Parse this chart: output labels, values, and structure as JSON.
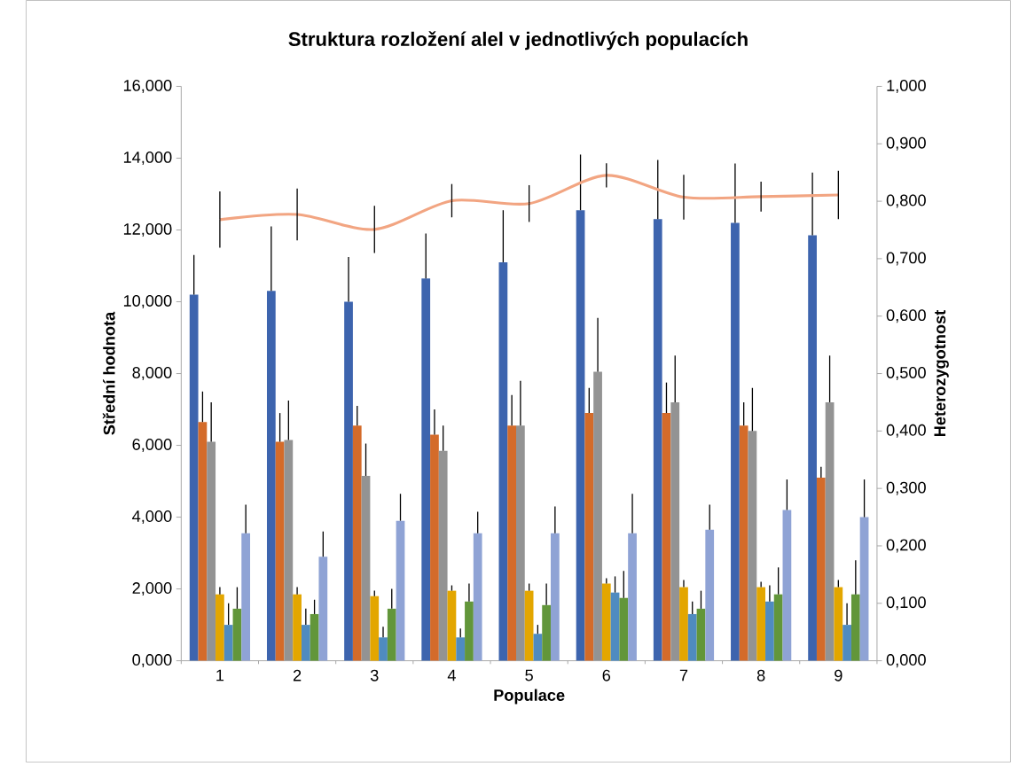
{
  "chart_data": {
    "type": "bar",
    "title": "Struktura rozložení alel v jednotlivých populacích",
    "xlabel": "Populace",
    "ylabel": "Střední hodnota",
    "y2label": "Heterozygotnost",
    "categories": [
      "1",
      "2",
      "3",
      "4",
      "5",
      "6",
      "7",
      "8",
      "9"
    ],
    "ylim": [
      0,
      16
    ],
    "yticks": [
      {
        "value": 0,
        "label": "0,000"
      },
      {
        "value": 2,
        "label": "2,000"
      },
      {
        "value": 4,
        "label": "4,000"
      },
      {
        "value": 6,
        "label": "6,000"
      },
      {
        "value": 8,
        "label": "8,000"
      },
      {
        "value": 10,
        "label": "10,000"
      },
      {
        "value": 12,
        "label": "12,000"
      },
      {
        "value": 14,
        "label": "14,000"
      },
      {
        "value": 16,
        "label": "16,000"
      }
    ],
    "y2lim": [
      0,
      1
    ],
    "y2ticks": [
      {
        "value": 0,
        "label": "0,000"
      },
      {
        "value": 0.1,
        "label": "0,100"
      },
      {
        "value": 0.2,
        "label": "0,200"
      },
      {
        "value": 0.3,
        "label": "0,300"
      },
      {
        "value": 0.4,
        "label": "0,400"
      },
      {
        "value": 0.5,
        "label": "0,500"
      },
      {
        "value": 0.6,
        "label": "0,600"
      },
      {
        "value": 0.7,
        "label": "0,700"
      },
      {
        "value": 0.8,
        "label": "0,800"
      },
      {
        "value": 0.9,
        "label": "0,900"
      },
      {
        "value": 1,
        "label": "1,000"
      }
    ],
    "series": [
      {
        "color": "#3d64ae",
        "values": [
          10.2,
          10.3,
          10.0,
          10.65,
          11.1,
          12.55,
          12.3,
          12.2,
          11.85
        ],
        "errors": [
          [
            10.2,
            11.3
          ],
          [
            10.3,
            12.1
          ],
          [
            10.0,
            11.25
          ],
          [
            10.65,
            11.9
          ],
          [
            11.1,
            12.55
          ],
          [
            12.55,
            14.1
          ],
          [
            12.3,
            13.95
          ],
          [
            12.2,
            13.85
          ],
          [
            11.85,
            13.6
          ]
        ]
      },
      {
        "color": "#d46b2a",
        "values": [
          6.65,
          6.1,
          6.55,
          6.3,
          6.55,
          6.9,
          6.9,
          6.55,
          5.1
        ],
        "errors": [
          [
            6.65,
            7.5
          ],
          [
            6.1,
            6.9
          ],
          [
            6.55,
            7.1
          ],
          [
            6.3,
            7.0
          ],
          [
            6.55,
            7.4
          ],
          [
            6.9,
            7.6
          ],
          [
            6.9,
            7.75
          ],
          [
            6.55,
            7.2
          ],
          [
            5.1,
            5.4
          ]
        ]
      },
      {
        "color": "#939393",
        "values": [
          6.1,
          6.15,
          5.15,
          5.85,
          6.55,
          8.05,
          7.2,
          6.4,
          7.2
        ],
        "errors": [
          [
            6.1,
            7.2
          ],
          [
            6.15,
            7.25
          ],
          [
            5.15,
            6.05
          ],
          [
            5.85,
            6.55
          ],
          [
            6.55,
            7.8
          ],
          [
            8.05,
            9.55
          ],
          [
            7.2,
            8.5
          ],
          [
            6.4,
            7.6
          ],
          [
            7.2,
            8.5
          ]
        ]
      },
      {
        "color": "#e3a600",
        "values": [
          1.85,
          1.85,
          1.8,
          1.95,
          1.95,
          2.15,
          2.05,
          2.05,
          2.05
        ],
        "errors": [
          [
            1.85,
            2.05
          ],
          [
            1.85,
            2.05
          ],
          [
            1.8,
            1.95
          ],
          [
            1.95,
            2.1
          ],
          [
            1.95,
            2.15
          ],
          [
            2.15,
            2.3
          ],
          [
            2.05,
            2.25
          ],
          [
            2.05,
            2.2
          ],
          [
            2.05,
            2.25
          ]
        ]
      },
      {
        "color": "#4f8bc0",
        "values": [
          1.0,
          1.0,
          0.65,
          0.65,
          0.75,
          1.9,
          1.3,
          1.65,
          1.0
        ],
        "errors": [
          [
            1.0,
            1.6
          ],
          [
            1.0,
            1.45
          ],
          [
            0.65,
            0.95
          ],
          [
            0.65,
            0.9
          ],
          [
            0.75,
            1.0
          ],
          [
            1.9,
            2.35
          ],
          [
            1.3,
            1.65
          ],
          [
            1.65,
            2.1
          ],
          [
            1.0,
            1.6
          ]
        ]
      },
      {
        "color": "#62963a",
        "values": [
          1.45,
          1.3,
          1.45,
          1.65,
          1.55,
          1.75,
          1.45,
          1.85,
          1.85
        ],
        "errors": [
          [
            1.45,
            2.05
          ],
          [
            1.3,
            1.7
          ],
          [
            1.45,
            2.0
          ],
          [
            1.65,
            2.15
          ],
          [
            1.55,
            2.15
          ],
          [
            1.75,
            2.5
          ],
          [
            1.45,
            1.95
          ],
          [
            1.85,
            2.6
          ],
          [
            1.85,
            2.8
          ]
        ]
      },
      {
        "color": "#8fa3d5",
        "values": [
          3.55,
          2.9,
          3.9,
          3.55,
          3.55,
          3.55,
          3.65,
          4.2,
          4.0
        ],
        "errors": [
          [
            3.55,
            4.35
          ],
          [
            2.9,
            3.6
          ],
          [
            3.9,
            4.65
          ],
          [
            3.55,
            4.15
          ],
          [
            3.55,
            4.3
          ],
          [
            3.55,
            4.65
          ],
          [
            3.65,
            4.35
          ],
          [
            4.2,
            5.05
          ],
          [
            4.0,
            5.05
          ]
        ]
      },
      {
        "type": "line",
        "axis": "y2",
        "color": "#f2a582",
        "values": [
          0.768,
          0.777,
          0.751,
          0.801,
          0.796,
          0.845,
          0.807,
          0.808,
          0.811
        ],
        "errors": [
          0.049,
          0.045,
          0.041,
          0.029,
          0.032,
          0.021,
          0.039,
          0.026,
          0.042
        ]
      }
    ]
  }
}
